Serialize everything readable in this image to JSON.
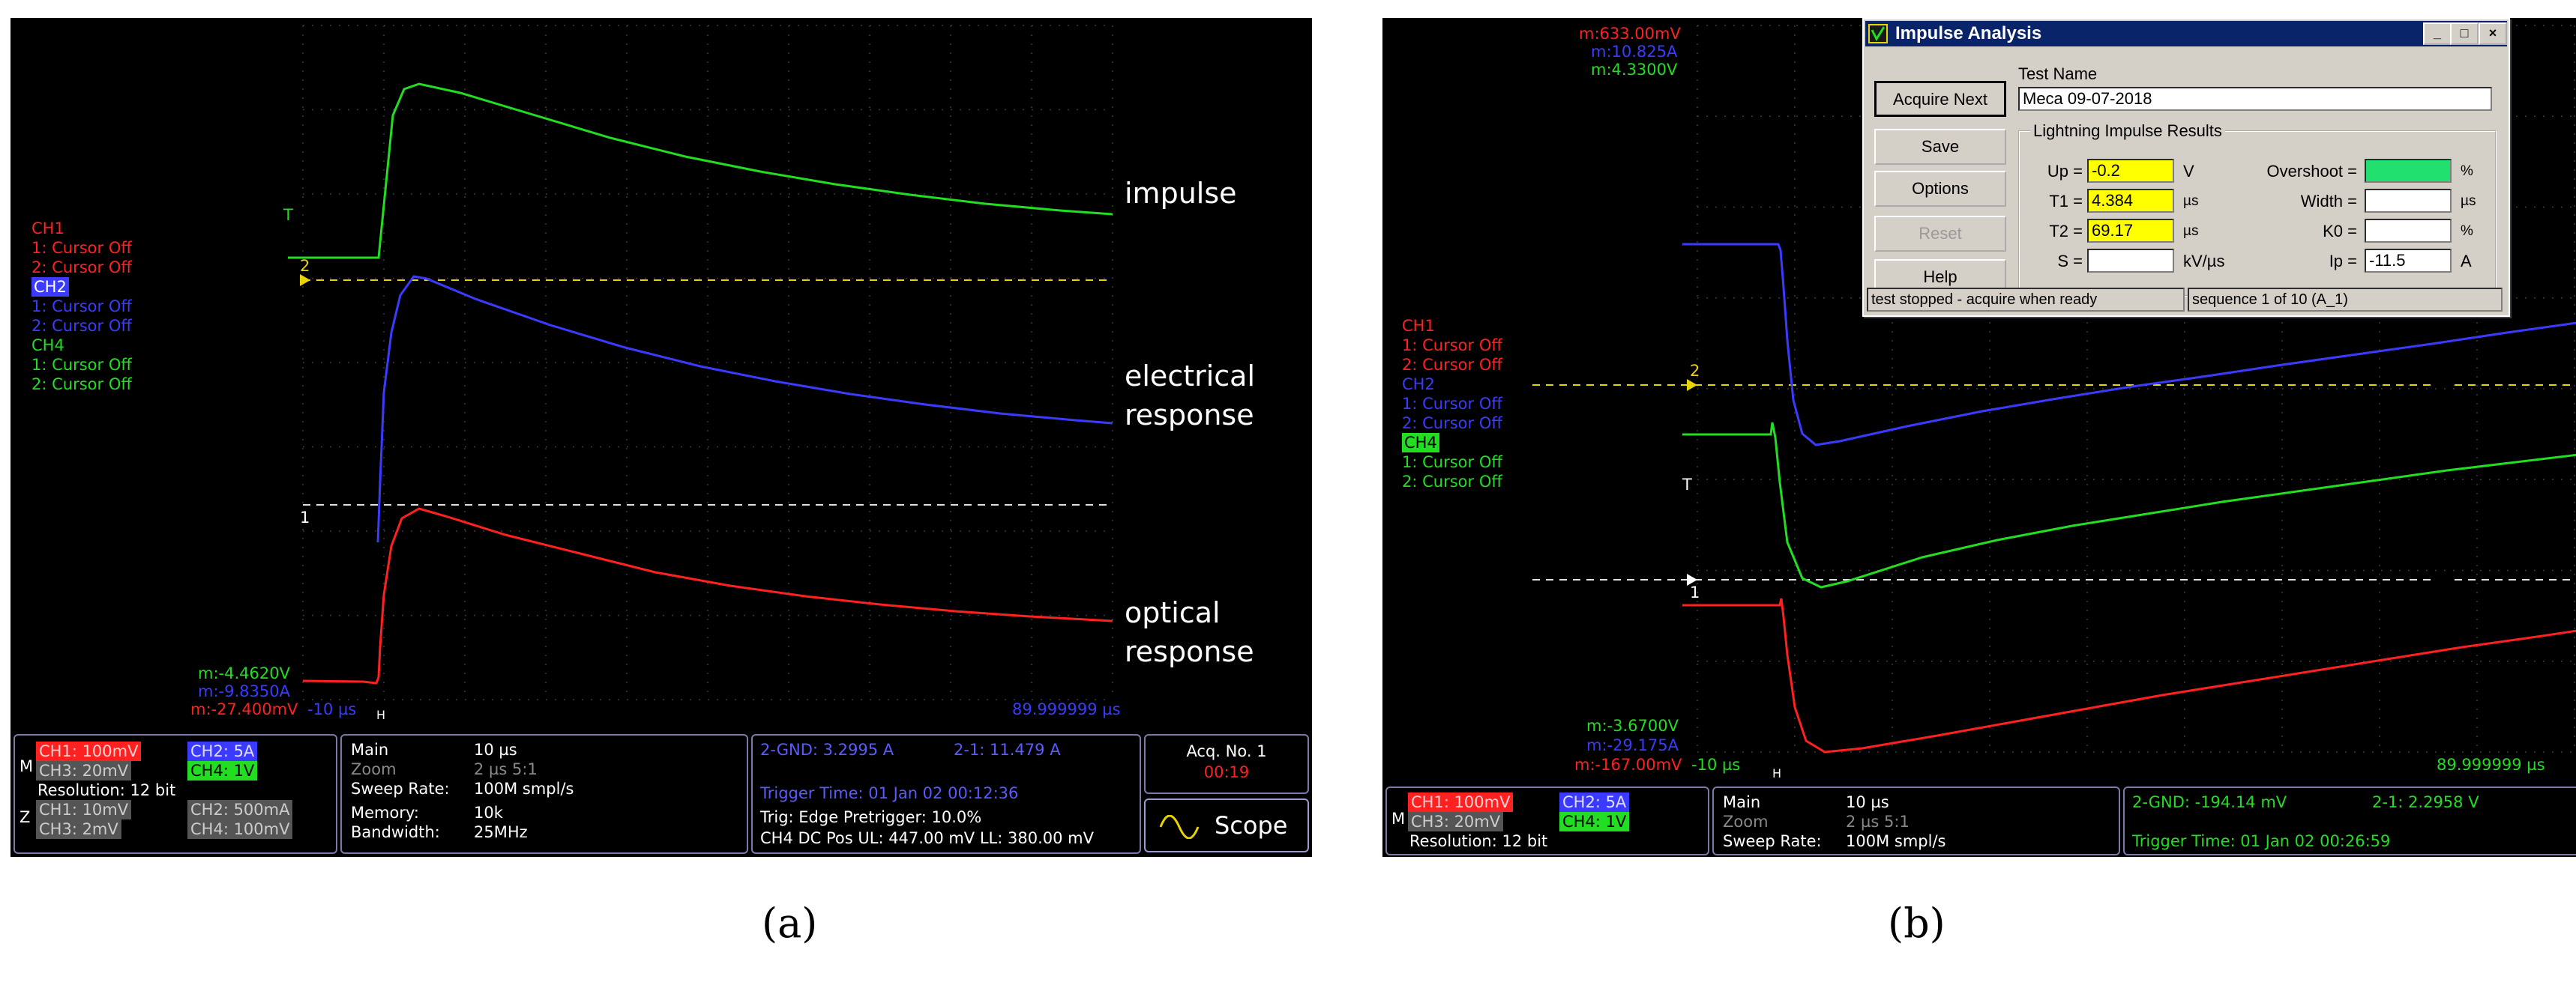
{
  "panel_a": {
    "channel_legend": {
      "ch1": {
        "name": "CH1",
        "c1": "1: Cursor Off",
        "c2": "2: Cursor Off"
      },
      "ch2": {
        "name": "CH2",
        "c1": "1: Cursor Off",
        "c2": "2: Cursor Off"
      },
      "ch4": {
        "name": "CH4",
        "c1": "1: Cursor Off",
        "c2": "2: Cursor Off"
      }
    },
    "readouts": {
      "ch4": "m:-4.4620V",
      "ch2": "m:-9.8350A",
      "ch1": "m:-27.400mV",
      "time_left": "-10 µs",
      "time_right": "89.999999 µs"
    },
    "annotations": {
      "impulse": "impulse",
      "electrical_1": "electrical",
      "electrical_2": "response",
      "optical_1": "optical",
      "optical_2": "response"
    },
    "markers": {
      "two": "2",
      "one": "1",
      "trig": "T",
      "h": "H"
    },
    "status": {
      "m_label": "M",
      "z_label": "Z",
      "ch1_scale": "CH1: 100mV",
      "ch2_scale": "CH2: 5A",
      "ch3_scale": "CH3: 20mV",
      "ch4_scale": "CH4: 1V",
      "resolution": "Resolution: 12 bit",
      "z_ch1": "CH1: 10mV",
      "z_ch2": "CH2: 500mA",
      "z_ch3": "CH3: 2mV",
      "z_ch4": "CH4: 100mV",
      "main_label": "Main",
      "main_value": "10 µs",
      "zoom_label": "Zoom",
      "zoom_value": "2 µs  5:1",
      "sweep_label": "Sweep Rate:",
      "sweep_value": "100M smpl/s",
      "memory_label": "Memory:",
      "memory_value": "10k",
      "bandwidth_label": "Bandwidth:",
      "bandwidth_value": "25MHz",
      "gnd": "2-GND: 3.2995 A",
      "two_one": "2-1: 11.479 A",
      "trigger_time": "Trigger Time: 01 Jan 02 00:12:36",
      "trig_edge": "Trig: Edge   Pretrigger: 10.0%",
      "ch4_pos": "CH4 DC Pos   UL: 447.00 mV   LL: 380.00 mV",
      "acq": "Acq. No. 1",
      "acq_time": "00:19",
      "scope_button": "Scope"
    }
  },
  "panel_b": {
    "top_readouts": {
      "ch1": "m:633.00mV",
      "ch2": "m:10.825A",
      "ch4": "m:4.3300V"
    },
    "channel_legend": {
      "ch1": {
        "name": "CH1",
        "c1": "1: Cursor Off",
        "c2": "2: Cursor Off"
      },
      "ch2": {
        "name": "CH2",
        "c1": "1: Cursor Off",
        "c2": "2: Cursor Off"
      },
      "ch4": {
        "name": "CH4",
        "c1": "1: Cursor Off",
        "c2": "2: Cursor Off"
      }
    },
    "readouts": {
      "ch4": "m:-3.6700V",
      "ch2": "m:-29.175A",
      "ch1": "m:-167.00mV",
      "time_left": "-10 µs",
      "time_right": "89.999999 µs"
    },
    "markers": {
      "two": "2",
      "one": "1",
      "trig": "T",
      "h": "H"
    },
    "status": {
      "m_label": "M",
      "ch1_scale": "CH1: 100mV",
      "ch2_scale": "CH2: 5A",
      "ch3_scale": "CH3: 20mV",
      "ch4_scale": "CH4: 1V",
      "resolution": "Resolution: 12 bit",
      "main_label": "Main",
      "main_value": "10 µs",
      "zoom_label": "Zoom",
      "zoom_value": "2 µs  5:1",
      "sweep_label": "Sweep Rate:",
      "sweep_value": "100M smpl/s",
      "gnd": "2-GND: -194.14 mV",
      "two_one": "2-1: 2.2958 V",
      "trigger_time": "Trigger Time: 01 Jan 02 00:26:59"
    },
    "dialog": {
      "title": "Impulse Analysis",
      "win_min": "_",
      "win_max": "□",
      "win_close": "×",
      "acquire_next": "Acquire Next",
      "save": "Save",
      "options": "Options",
      "reset": "Reset",
      "help": "Help",
      "test_name_label": "Test Name",
      "test_name_value": "Meca 09-07-2018",
      "group_label": "Lightning Impulse Results",
      "up_label": "Up =",
      "up_value": "-0.2",
      "up_unit": "V",
      "t1_label": "T1 =",
      "t1_value": "4.384",
      "t1_unit": "µs",
      "t2_label": "T2 =",
      "t2_value": "69.17",
      "t2_unit": "µs",
      "s_label": "S =",
      "s_value": "",
      "s_unit": "kV/µs",
      "overshoot_label": "Overshoot =",
      "overshoot_value": "",
      "overshoot_unit": "%",
      "width_label": "Width =",
      "width_value": "",
      "width_unit": "µs",
      "k0_label": "K0 =",
      "k0_value": "",
      "k0_unit": "%",
      "ip_label": "Ip =",
      "ip_value": "-11.5",
      "ip_unit": "A",
      "status_left": "test stopped - acquire when ready",
      "status_right": "sequence 1 of 10 (A_1)"
    }
  },
  "captions": {
    "a": "(a)",
    "b": "(b)"
  },
  "colors": {
    "ch1": "#ff2020",
    "ch2": "#3b3bff",
    "ch4": "#22dd22",
    "marker": "#e8d400",
    "background": "#000000"
  }
}
